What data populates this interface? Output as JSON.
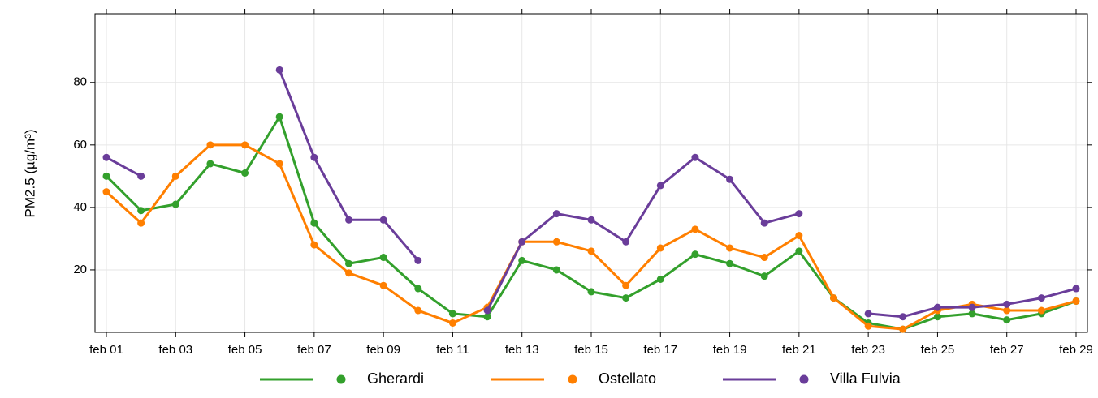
{
  "chart_data": {
    "type": "line",
    "ylabel": "PM2.5 (µg/m³)",
    "categories": [
      "feb 01",
      null,
      "feb 03",
      null,
      "feb 05",
      null,
      "feb 07",
      null,
      "feb 09",
      null,
      "feb 11",
      null,
      "feb 13",
      null,
      "feb 15",
      null,
      "feb 17",
      null,
      "feb 19",
      null,
      "feb 21",
      null,
      "feb 23",
      null,
      "feb 25",
      null,
      "feb 27",
      null,
      "feb 29"
    ],
    "series": [
      {
        "name": "Gherardi",
        "color": "#33a02c",
        "values": [
          50,
          39,
          41,
          54,
          51,
          69,
          35,
          22,
          24,
          14,
          6,
          5,
          23,
          20,
          13,
          11,
          17,
          25,
          22,
          18,
          26,
          11,
          3,
          1,
          5,
          6,
          4,
          6,
          10
        ]
      },
      {
        "name": "Ostellato",
        "color": "#ff7f00",
        "values": [
          45,
          35,
          50,
          60,
          60,
          54,
          28,
          19,
          15,
          7,
          3,
          8,
          29,
          29,
          26,
          15,
          27,
          33,
          27,
          24,
          31,
          11,
          2,
          1,
          7,
          9,
          7,
          7,
          10
        ]
      },
      {
        "name": "Villa Fulvia",
        "color": "#6a3d9a",
        "values": [
          56,
          50,
          null,
          null,
          null,
          84,
          56,
          36,
          36,
          23,
          null,
          7,
          29,
          38,
          36,
          29,
          47,
          56,
          49,
          35,
          38,
          null,
          6,
          5,
          8,
          8,
          9,
          11,
          14
        ]
      }
    ],
    "ylim": [
      0,
      102
    ],
    "yticks": [
      20,
      40,
      60,
      80
    ],
    "grid": true,
    "legend": "bottom"
  }
}
